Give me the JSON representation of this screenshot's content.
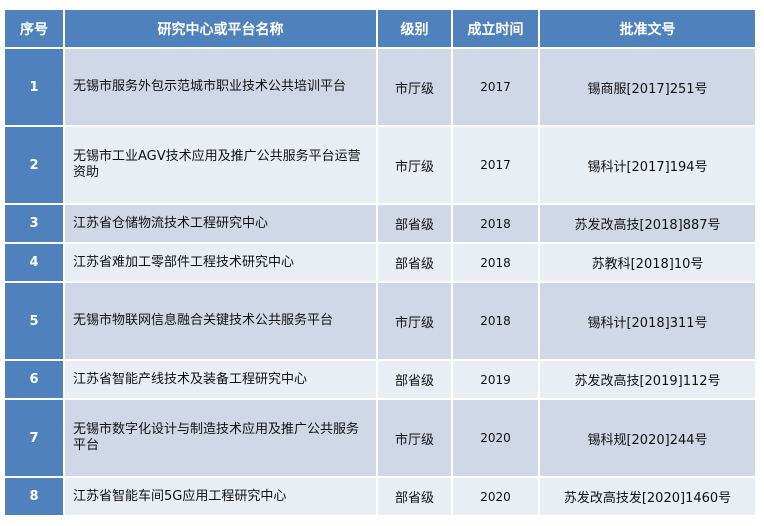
{
  "headers": [
    "序号",
    "研究中心或平台名称",
    "级别",
    "成立时间",
    "批准文号"
  ],
  "rows": [
    {
      "no": "1",
      "name": "无锡市服务外包示范城市职业技术公共培训平台",
      "level": "市厅级",
      "year": "2017",
      "doc": "锡商服[2017]251号"
    },
    {
      "no": "2",
      "name": "无锡市工业AGV技术应用及推广公共服务平台运营资助",
      "level": "市厅级",
      "year": "2017",
      "doc": "锡科计[2017]194号"
    },
    {
      "no": "3",
      "name": "江苏省仓储物流技术工程研究中心",
      "level": "部省级",
      "year": "2018",
      "doc": "苏发改高技[2018]887号"
    },
    {
      "no": "4",
      "name": "江苏省难加工零部件工程技术研究中心",
      "level": "部省级",
      "year": "2018",
      "doc": "苏教科[2018]10号"
    },
    {
      "no": "5",
      "name": "无锡市物联网信息融合关键技术公共服务平台",
      "level": "市厅级",
      "year": "2018",
      "doc": "锡科计[2018]311号"
    },
    {
      "no": "6",
      "name": "江苏省智能产线技术及装备工程研究中心",
      "level": "部省级",
      "year": "2019",
      "doc": "苏发改高技[2019]112号"
    },
    {
      "no": "7",
      "name": "无锡市数字化设计与制造技术应用及推广公共服务平台",
      "level": "市厅级",
      "year": "2020",
      "doc": "锡科规[2020]244号"
    },
    {
      "no": "8",
      "name": "江苏省智能车间5G应用工程研究中心",
      "level": "部省级",
      "year": "2020",
      "doc": "苏发改高技发[2020]1460号"
    }
  ],
  "colors": {
    "header": "#4F81BD",
    "row_odd": "#D0D8E8",
    "row_even": "#E9EDF4"
  }
}
